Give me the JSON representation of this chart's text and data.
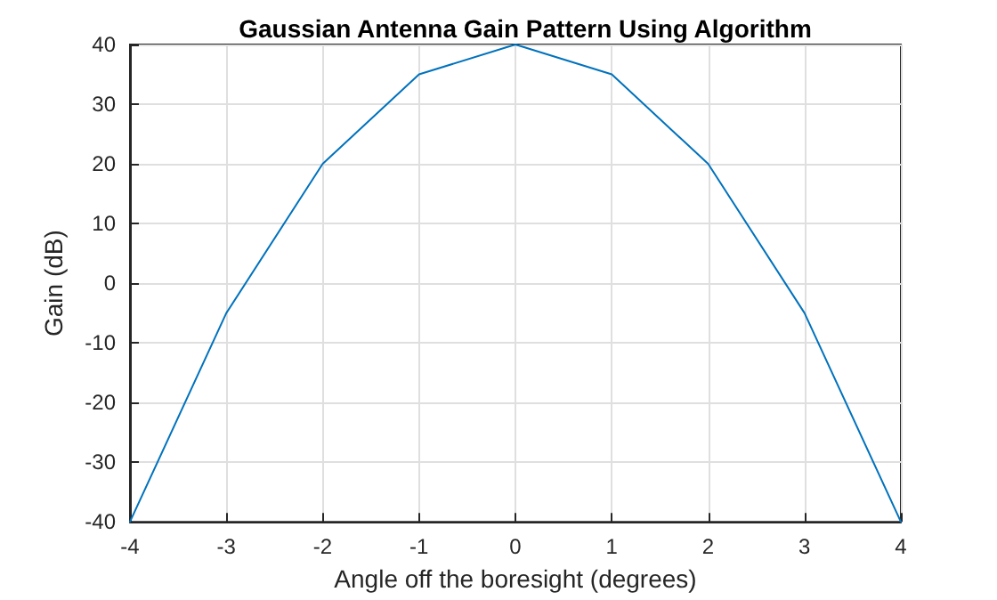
{
  "chart_data": {
    "type": "line",
    "title": "Gaussian Antenna Gain Pattern Using Algorithm",
    "xlabel": "Angle off the boresight (degrees)",
    "ylabel": "Gain (dB)",
    "x": [
      -4,
      -3,
      -2,
      -1,
      0,
      1,
      2,
      3,
      4
    ],
    "series": [
      {
        "color": "#0072bd",
        "values": [
          -40,
          -5,
          20,
          35,
          40,
          35,
          20,
          -5,
          -40
        ]
      }
    ],
    "xlim": [
      -4,
      4
    ],
    "xticks": [
      -4,
      -3,
      -2,
      -1,
      0,
      1,
      2,
      3,
      4
    ],
    "ylim": [
      -40,
      40
    ],
    "yticks": [
      -40,
      -30,
      -20,
      -10,
      0,
      10,
      20,
      30,
      40
    ],
    "grid": true,
    "marker": "none",
    "line_style": "solid"
  }
}
